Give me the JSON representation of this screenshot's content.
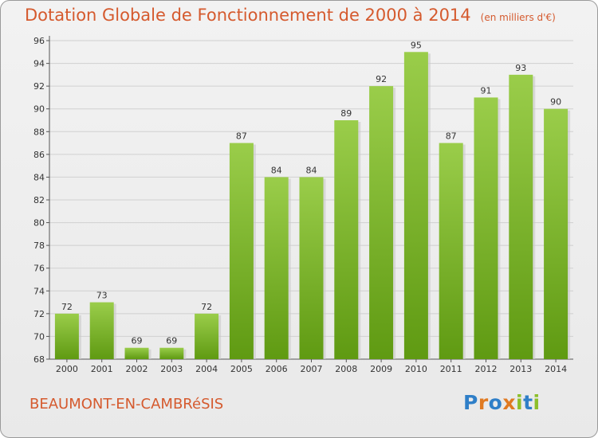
{
  "header": {
    "title": "Dotation Globale de Fonctionnement de 2000 à 2014",
    "subtitle": "(en milliers d'€)"
  },
  "footer": {
    "commune": "BEAUMONT-EN-CAMBRéSIS",
    "brand": "Proxiti"
  },
  "colors": {
    "title": "#d55a2e",
    "bar_top": "#9acd4a",
    "bar_bottom": "#5f9a12",
    "brand_letters": [
      "#2f7fc8",
      "#e07a22",
      "#2f7fc8",
      "#e07a22",
      "#8cbf2a",
      "#2f7fc8",
      "#8cbf2a"
    ]
  },
  "chart_data": {
    "type": "bar",
    "categories": [
      "2000",
      "2001",
      "2002",
      "2003",
      "2004",
      "2005",
      "2006",
      "2007",
      "2008",
      "2009",
      "2010",
      "2011",
      "2012",
      "2013",
      "2014"
    ],
    "values": [
      72,
      73,
      69,
      69,
      72,
      87,
      84,
      84,
      89,
      92,
      95,
      87,
      91,
      93,
      90
    ],
    "ylim": [
      68,
      96
    ],
    "yticks": [
      68,
      70,
      72,
      74,
      76,
      78,
      80,
      82,
      84,
      86,
      88,
      90,
      92,
      94,
      96
    ],
    "grid": true,
    "data_labels": true
  }
}
